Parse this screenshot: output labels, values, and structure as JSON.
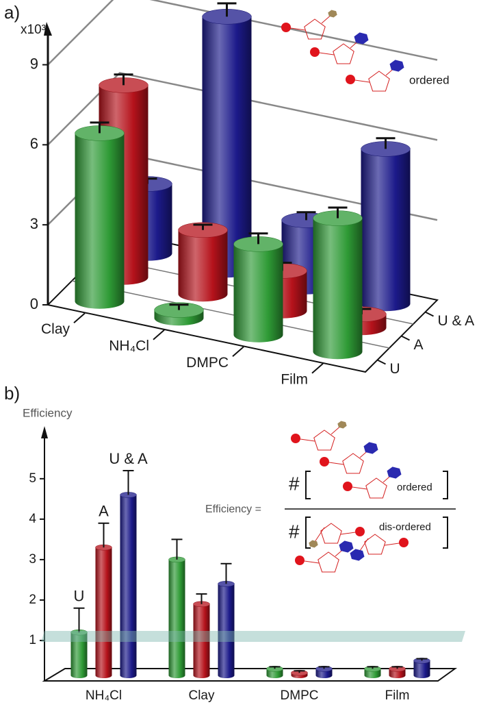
{
  "chart_data": [
    {
      "type": "bar3d",
      "panel_label": "a)",
      "y_label": "x10³",
      "categories": [
        "Clay",
        "NH₄Cl",
        "DMPC",
        "Film"
      ],
      "series": [
        {
          "name": "U",
          "color": "#2e9a35",
          "values": [
            6.3,
            0.3,
            3.4,
            5.0
          ],
          "errors": [
            0.4,
            0.2,
            0.4,
            0.4
          ]
        },
        {
          "name": "A",
          "color": "#b5121b",
          "values": [
            7.2,
            2.4,
            1.5,
            0.5
          ],
          "errors": [
            0.4,
            0.2,
            0.3,
            0.2
          ]
        },
        {
          "name": "U & A",
          "color": "#1c1a8a",
          "values": [
            2.6,
            9.5,
            2.5,
            5.8
          ],
          "errors": [
            0.2,
            0.5,
            0.3,
            0.4
          ]
        }
      ],
      "ylim": [
        0,
        10.4
      ],
      "yticks": [
        0,
        3,
        6,
        9
      ],
      "grid": true,
      "annotation": "ordered"
    },
    {
      "type": "bar",
      "panel_label": "b)",
      "y_label": "Efficiency",
      "categories": [
        "NH₄Cl",
        "Clay",
        "DMPC",
        "Film"
      ],
      "series": [
        {
          "name": "U",
          "color": "#2e9a35",
          "values": [
            1.2,
            3.0,
            0.3,
            0.3
          ],
          "errors": [
            0.6,
            0.5,
            0.05,
            0.05
          ]
        },
        {
          "name": "A",
          "color": "#b5121b",
          "values": [
            3.3,
            1.9,
            0.2,
            0.3
          ],
          "errors": [
            0.6,
            0.25,
            0.05,
            0.05
          ]
        },
        {
          "name": "U & A",
          "color": "#1c1a8a",
          "values": [
            4.6,
            2.4,
            0.3,
            0.5
          ],
          "errors": [
            0.6,
            0.5,
            0.05,
            0.05
          ]
        }
      ],
      "ylim": [
        0,
        6.2
      ],
      "yticks": [
        1,
        2,
        3,
        4,
        5
      ],
      "threshold": 1,
      "formula": {
        "lhs": "Efficiency =",
        "symbol": "#",
        "numerator_label": "ordered",
        "denominator_label": "dis-ordered"
      }
    }
  ]
}
